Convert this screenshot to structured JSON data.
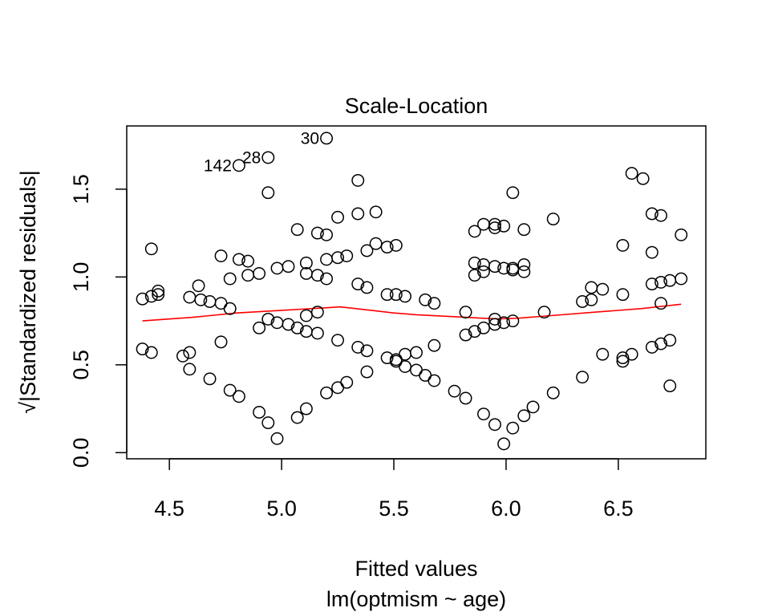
{
  "chart_data": {
    "type": "scatter",
    "title": "Scale-Location",
    "xlabel": "Fitted values",
    "subtitle": "lm(optmism ~ age)",
    "ylabel_prefix": "√",
    "ylabel_main": "|Standardized residuals|",
    "xlim": [
      4.31,
      6.89
    ],
    "ylim": [
      -0.035,
      1.86
    ],
    "xticks": [
      4.5,
      5.0,
      5.5,
      6.0,
      6.5
    ],
    "xtick_labels": [
      "4.5",
      "5.0",
      "5.5",
      "6.0",
      "6.5"
    ],
    "yticks": [
      0.0,
      0.5,
      1.0,
      1.5
    ],
    "ytick_labels": [
      "0.0",
      "0.5",
      "1.0",
      "1.5"
    ],
    "grid": false,
    "point_color": "#000000",
    "smooth_color": "#ff0000",
    "labeled_points": [
      {
        "label": "30",
        "x": 5.2,
        "y": 1.79
      },
      {
        "label": "28",
        "x": 4.94,
        "y": 1.68
      },
      {
        "label": "142",
        "x": 4.81,
        "y": 1.635
      }
    ],
    "points": [
      [
        4.38,
        0.875
      ],
      [
        4.38,
        0.59
      ],
      [
        4.42,
        0.89
      ],
      [
        4.42,
        1.16
      ],
      [
        4.42,
        0.57
      ],
      [
        4.45,
        0.9
      ],
      [
        4.45,
        0.92
      ],
      [
        4.56,
        0.55
      ],
      [
        4.59,
        0.57
      ],
      [
        4.59,
        0.475
      ],
      [
        4.59,
        0.885
      ],
      [
        4.63,
        0.95
      ],
      [
        4.64,
        0.87
      ],
      [
        4.68,
        0.86
      ],
      [
        4.68,
        0.42
      ],
      [
        4.73,
        0.85
      ],
      [
        4.73,
        1.12
      ],
      [
        4.73,
        0.63
      ],
      [
        4.77,
        0.355
      ],
      [
        4.77,
        0.82
      ],
      [
        4.77,
        0.99
      ],
      [
        4.81,
        0.32
      ],
      [
        4.81,
        1.1
      ],
      [
        4.81,
        1.635
      ],
      [
        4.85,
        1.09
      ],
      [
        4.85,
        1.01
      ],
      [
        4.9,
        1.02
      ],
      [
        4.9,
        0.71
      ],
      [
        4.9,
        0.23
      ],
      [
        4.94,
        1.48
      ],
      [
        4.94,
        1.68
      ],
      [
        4.94,
        0.76
      ],
      [
        4.94,
        0.17
      ],
      [
        4.98,
        0.74
      ],
      [
        4.98,
        1.05
      ],
      [
        4.98,
        0.08
      ],
      [
        5.03,
        1.06
      ],
      [
        5.03,
        0.73
      ],
      [
        5.07,
        0.71
      ],
      [
        5.07,
        0.2
      ],
      [
        5.07,
        1.27
      ],
      [
        5.11,
        0.69
      ],
      [
        5.11,
        1.02
      ],
      [
        5.11,
        1.08
      ],
      [
        5.11,
        0.25
      ],
      [
        5.11,
        0.78
      ],
      [
        5.16,
        0.8
      ],
      [
        5.16,
        0.68
      ],
      [
        5.16,
        1.25
      ],
      [
        5.16,
        1.01
      ],
      [
        5.2,
        1.24
      ],
      [
        5.2,
        1.79
      ],
      [
        5.2,
        0.99
      ],
      [
        5.2,
        1.1
      ],
      [
        5.2,
        0.34
      ],
      [
        5.25,
        0.64
      ],
      [
        5.25,
        0.37
      ],
      [
        5.25,
        1.34
      ],
      [
        5.25,
        1.11
      ],
      [
        5.29,
        1.12
      ],
      [
        5.29,
        0.4
      ],
      [
        5.34,
        1.55
      ],
      [
        5.34,
        1.36
      ],
      [
        5.34,
        0.6
      ],
      [
        5.34,
        0.96
      ],
      [
        5.38,
        0.58
      ],
      [
        5.38,
        1.15
      ],
      [
        5.38,
        0.46
      ],
      [
        5.38,
        0.94
      ],
      [
        5.42,
        1.37
      ],
      [
        5.42,
        1.19
      ],
      [
        5.47,
        1.17
      ],
      [
        5.47,
        0.9
      ],
      [
        5.47,
        0.54
      ],
      [
        5.51,
        0.52
      ],
      [
        5.51,
        0.53
      ],
      [
        5.51,
        0.9
      ],
      [
        5.51,
        1.18
      ],
      [
        5.55,
        0.49
      ],
      [
        5.55,
        0.56
      ],
      [
        5.55,
        0.89
      ],
      [
        5.6,
        0.57
      ],
      [
        5.6,
        0.47
      ],
      [
        5.64,
        0.87
      ],
      [
        5.64,
        0.44
      ],
      [
        5.68,
        0.41
      ],
      [
        5.68,
        0.61
      ],
      [
        5.68,
        0.85
      ],
      [
        5.77,
        0.35
      ],
      [
        5.82,
        0.31
      ],
      [
        5.82,
        0.67
      ],
      [
        5.82,
        0.8
      ],
      [
        5.86,
        0.69
      ],
      [
        5.86,
        1.01
      ],
      [
        5.86,
        1.08
      ],
      [
        5.86,
        1.26
      ],
      [
        5.9,
        1.3
      ],
      [
        5.9,
        1.03
      ],
      [
        5.9,
        1.07
      ],
      [
        5.9,
        0.71
      ],
      [
        5.9,
        0.22
      ],
      [
        5.95,
        1.3
      ],
      [
        5.95,
        1.28
      ],
      [
        5.95,
        1.06
      ],
      [
        5.95,
        0.76
      ],
      [
        5.95,
        0.73
      ],
      [
        5.95,
        0.16
      ],
      [
        5.99,
        1.29
      ],
      [
        5.99,
        1.05
      ],
      [
        5.99,
        0.74
      ],
      [
        5.99,
        0.05
      ],
      [
        6.03,
        1.48
      ],
      [
        6.03,
        1.05
      ],
      [
        6.03,
        1.04
      ],
      [
        6.03,
        0.75
      ],
      [
        6.03,
        0.14
      ],
      [
        6.08,
        1.27
      ],
      [
        6.08,
        1.07
      ],
      [
        6.08,
        1.03
      ],
      [
        6.08,
        0.21
      ],
      [
        6.12,
        0.26
      ],
      [
        6.17,
        0.8
      ],
      [
        6.21,
        1.33
      ],
      [
        6.21,
        0.34
      ],
      [
        6.34,
        0.86
      ],
      [
        6.34,
        0.43
      ],
      [
        6.38,
        0.87
      ],
      [
        6.38,
        0.94
      ],
      [
        6.43,
        0.93
      ],
      [
        6.43,
        0.56
      ],
      [
        6.52,
        0.52
      ],
      [
        6.52,
        0.54
      ],
      [
        6.52,
        0.9
      ],
      [
        6.52,
        1.18
      ],
      [
        6.56,
        1.59
      ],
      [
        6.56,
        0.56
      ],
      [
        6.61,
        1.56
      ],
      [
        6.65,
        1.36
      ],
      [
        6.65,
        1.14
      ],
      [
        6.65,
        0.96
      ],
      [
        6.65,
        0.6
      ],
      [
        6.69,
        0.62
      ],
      [
        6.69,
        0.85
      ],
      [
        6.69,
        1.35
      ],
      [
        6.69,
        0.97
      ],
      [
        6.73,
        0.98
      ],
      [
        6.73,
        0.64
      ],
      [
        6.73,
        0.38
      ],
      [
        6.78,
        1.24
      ],
      [
        6.78,
        0.99
      ]
    ],
    "smooth": [
      [
        4.38,
        0.75
      ],
      [
        4.6,
        0.77
      ],
      [
        4.8,
        0.795
      ],
      [
        5.0,
        0.81
      ],
      [
        5.2,
        0.825
      ],
      [
        5.26,
        0.83
      ],
      [
        5.4,
        0.81
      ],
      [
        5.5,
        0.795
      ],
      [
        5.6,
        0.785
      ],
      [
        5.75,
        0.775
      ],
      [
        5.9,
        0.765
      ],
      [
        5.97,
        0.762
      ],
      [
        6.05,
        0.765
      ],
      [
        6.2,
        0.78
      ],
      [
        6.4,
        0.8
      ],
      [
        6.6,
        0.82
      ],
      [
        6.78,
        0.845
      ]
    ]
  }
}
